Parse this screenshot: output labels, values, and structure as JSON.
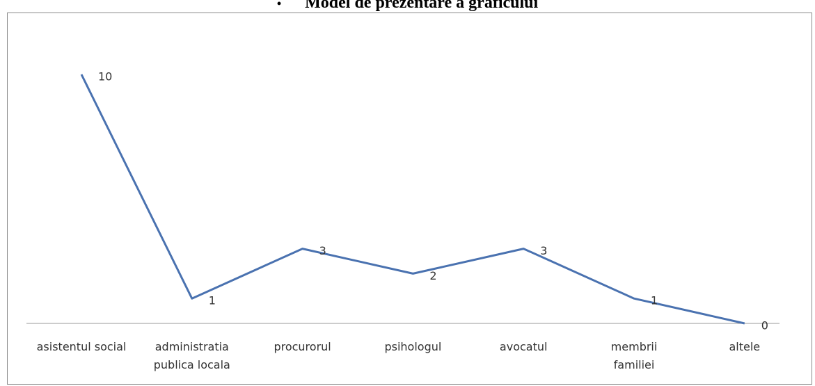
{
  "chart_data": {
    "type": "line",
    "title": "Model de prezentare a graficului",
    "categories": [
      "asistentul social",
      "administratia publica locala",
      "procurorul",
      "psihologul",
      "avocatul",
      "membrii familiei",
      "altele"
    ],
    "series": [
      {
        "color": "#4a72b0",
        "values": [
          10,
          1,
          3,
          2,
          3,
          1,
          0
        ]
      }
    ],
    "ylim": [
      0,
      10
    ]
  }
}
